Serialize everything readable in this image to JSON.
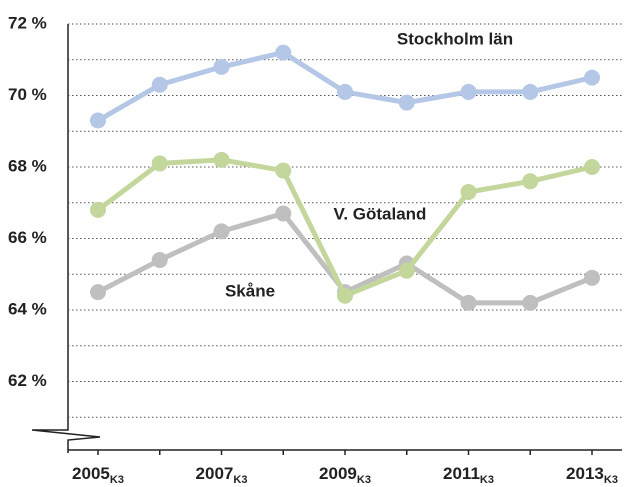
{
  "chart_data": {
    "type": "line",
    "categories": [
      "2005",
      null,
      "2007",
      null,
      "2009",
      null,
      "2011",
      null,
      "2013"
    ],
    "category_subscript": "K3",
    "series": [
      {
        "name": "Stockholm län",
        "color": "#b4c7e7",
        "values": [
          69.3,
          70.3,
          70.8,
          71.2,
          70.1,
          69.8,
          70.1,
          70.1,
          70.5
        ]
      },
      {
        "name": "V. Götaland",
        "color": "#c3d69b",
        "values": [
          66.8,
          68.1,
          68.2,
          67.9,
          64.4,
          65.1,
          67.3,
          67.6,
          68.0
        ]
      },
      {
        "name": "Skåne",
        "color": "#bfbfbf",
        "values": [
          64.5,
          65.4,
          66.2,
          66.7,
          64.5,
          65.3,
          64.2,
          64.2,
          64.9
        ]
      }
    ],
    "ylim": [
      60,
      72
    ],
    "yticks": [
      {
        "value": 62,
        "label": "62 %"
      },
      {
        "value": 64,
        "label": "64 %"
      },
      {
        "value": 66,
        "label": "66 %"
      },
      {
        "value": 68,
        "label": "68 %"
      },
      {
        "value": 70,
        "label": "70 %"
      },
      {
        "value": 72,
        "label": "72 %"
      }
    ],
    "minor_yticks": [
      61,
      63,
      65,
      67,
      69,
      71
    ],
    "grid": true
  }
}
